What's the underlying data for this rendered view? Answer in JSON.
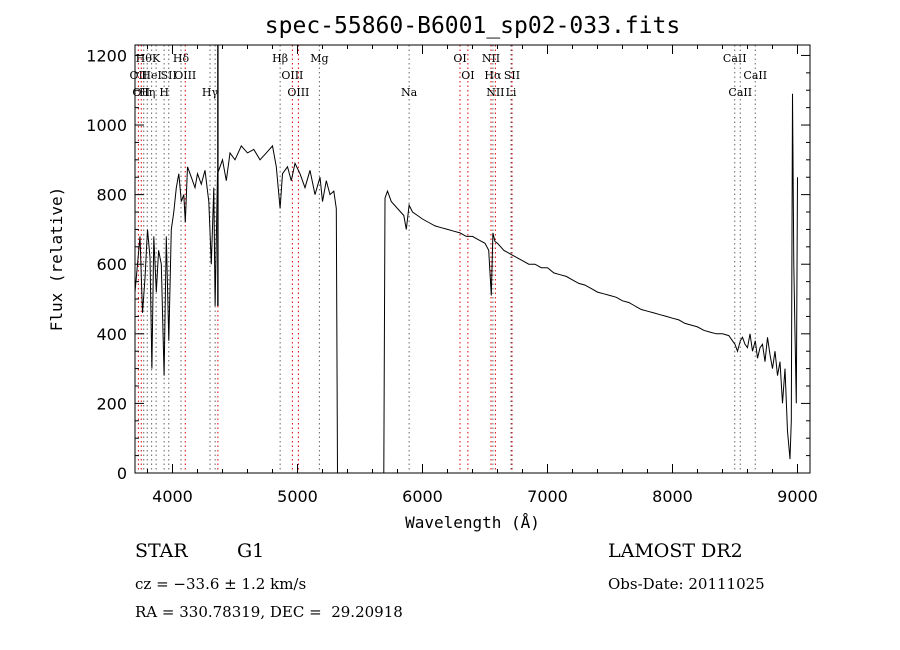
{
  "chart_data": {
    "type": "line",
    "title": "spec-55860-B6001_sp02-033.fits",
    "xlabel": "Wavelength (Å)",
    "ylabel": "Flux (relative)",
    "xlim": [
      3700,
      9100
    ],
    "ylim": [
      0,
      1230
    ],
    "x_ticks": [
      4000,
      5000,
      6000,
      7000,
      8000,
      9000
    ],
    "y_ticks": [
      0,
      200,
      400,
      600,
      800,
      1000,
      1200
    ],
    "grid": false,
    "line_colors": {
      "spectrum": "#000000",
      "emission": "#dd0000",
      "absorption": "#666666"
    },
    "series": [
      {
        "x": [
          3700,
          3720,
          3740,
          3760,
          3780,
          3800,
          3820,
          3835,
          3850,
          3870,
          3889,
          3910,
          3933,
          3950,
          3970,
          3990,
          4010,
          4030,
          4050,
          4070,
          4090,
          4102,
          4120,
          4150,
          4180,
          4200,
          4230,
          4260,
          4290,
          4310,
          4330,
          4341,
          4360,
          4380,
          4400,
          4430,
          4460,
          4500,
          4550,
          4600,
          4650,
          4700,
          4750,
          4800,
          4830,
          4861,
          4880,
          4920,
          4950,
          4980,
          5020,
          5060,
          5100,
          5140,
          5180,
          5200,
          5230,
          5260,
          5290,
          5310,
          5320,
          5360,
          5400,
          5500,
          5600,
          5670,
          5690,
          5700,
          5720,
          5750,
          5800,
          5850,
          5870,
          5893,
          5920,
          5960,
          6000,
          6050,
          6100,
          6150,
          6200,
          6250,
          6300,
          6350,
          6400,
          6450,
          6500,
          6530,
          6550,
          6563,
          6580,
          6600,
          6650,
          6700,
          6750,
          6800,
          6850,
          6900,
          6950,
          7000,
          7050,
          7100,
          7150,
          7200,
          7250,
          7300,
          7350,
          7400,
          7450,
          7500,
          7550,
          7600,
          7650,
          7700,
          7750,
          7800,
          7850,
          7900,
          7950,
          8000,
          8050,
          8100,
          8150,
          8200,
          8250,
          8300,
          8350,
          8400,
          8450,
          8480,
          8500,
          8520,
          8542,
          8560,
          8580,
          8600,
          8620,
          8640,
          8662,
          8680,
          8700,
          8720,
          8740,
          8760,
          8780,
          8800,
          8820,
          8840,
          8860,
          8880,
          8900,
          8920,
          8940,
          8950,
          8960,
          8970,
          8980,
          8990,
          9000
        ],
        "y": [
          520,
          600,
          680,
          460,
          560,
          700,
          620,
          300,
          680,
          520,
          640,
          600,
          280,
          680,
          380,
          700,
          750,
          820,
          860,
          780,
          800,
          720,
          880,
          850,
          820,
          860,
          830,
          870,
          780,
          600,
          820,
          480,
          860,
          880,
          900,
          840,
          920,
          900,
          940,
          920,
          930,
          900,
          920,
          940,
          880,
          760,
          860,
          880,
          840,
          890,
          860,
          820,
          870,
          800,
          850,
          780,
          840,
          800,
          810,
          760,
          0,
          0,
          0,
          0,
          0,
          0,
          0,
          790,
          810,
          780,
          760,
          740,
          700,
          770,
          750,
          740,
          730,
          720,
          710,
          705,
          700,
          695,
          690,
          680,
          680,
          670,
          660,
          640,
          510,
          690,
          665,
          660,
          640,
          630,
          620,
          610,
          600,
          600,
          590,
          590,
          575,
          570,
          565,
          555,
          545,
          540,
          530,
          520,
          515,
          510,
          505,
          495,
          490,
          480,
          470,
          465,
          460,
          455,
          450,
          445,
          440,
          430,
          425,
          420,
          410,
          405,
          400,
          400,
          395,
          380,
          370,
          350,
          380,
          390,
          370,
          360,
          400,
          350,
          380,
          330,
          360,
          370,
          320,
          390,
          340,
          300,
          350,
          280,
          320,
          200,
          300,
          120,
          40,
          150,
          1090,
          600,
          400,
          200,
          850
        ]
      }
    ],
    "line_markers": [
      {
        "x": 3727,
        "label": "OII",
        "kind": "emission",
        "row": 2
      },
      {
        "x": 3750,
        "label": "OII",
        "kind": "emission",
        "row": 3
      },
      {
        "x": 3770,
        "label": "Hθ",
        "kind": "absorption",
        "row": 1
      },
      {
        "x": 3798,
        "label": "Hη",
        "kind": "absorption",
        "row": 3
      },
      {
        "x": 3833,
        "label": "HeI",
        "kind": "absorption",
        "row": 2
      },
      {
        "x": 3869,
        "label": "K",
        "kind": "absorption",
        "row": 1
      },
      {
        "x": 3933,
        "label": "H",
        "kind": "absorption",
        "row": 3
      },
      {
        "x": 3970,
        "label": "SII",
        "kind": "absorption",
        "row": 2
      },
      {
        "x": 4068,
        "label": "Hδ",
        "kind": "absorption",
        "row": 1
      },
      {
        "x": 4102,
        "label": "OIII",
        "kind": "emission",
        "row": 2
      },
      {
        "x": 4300,
        "label": "Hγ",
        "kind": "absorption",
        "row": 3
      },
      {
        "x": 4341,
        "label": "",
        "kind": "absorption",
        "row": 0
      },
      {
        "x": 4363,
        "label": "",
        "kind": "emission",
        "row": 0
      },
      {
        "x": 4861,
        "label": "Hβ",
        "kind": "absorption",
        "row": 1
      },
      {
        "x": 4959,
        "label": "OIII",
        "kind": "emission",
        "row": 2
      },
      {
        "x": 5007,
        "label": "OIII",
        "kind": "emission",
        "row": 3
      },
      {
        "x": 5175,
        "label": "Mg",
        "kind": "absorption",
        "row": 1
      },
      {
        "x": 5893,
        "label": "Na",
        "kind": "absorption",
        "row": 3
      },
      {
        "x": 6300,
        "label": "OI",
        "kind": "emission",
        "row": 1
      },
      {
        "x": 6363,
        "label": "OI",
        "kind": "emission",
        "row": 2
      },
      {
        "x": 6548,
        "label": "NII",
        "kind": "emission",
        "row": 1
      },
      {
        "x": 6563,
        "label": "Hα",
        "kind": "absorption",
        "row": 2
      },
      {
        "x": 6583,
        "label": "NII",
        "kind": "emission",
        "row": 3
      },
      {
        "x": 6716,
        "label": "SII",
        "kind": "emission",
        "row": 2
      },
      {
        "x": 6708,
        "label": "Li",
        "kind": "absorption",
        "row": 3
      },
      {
        "x": 8498,
        "label": "CaII",
        "kind": "absorption",
        "row": 1
      },
      {
        "x": 8542,
        "label": "CaII",
        "kind": "absorption",
        "row": 3
      },
      {
        "x": 8662,
        "label": "CaII",
        "kind": "absorption",
        "row": 2
      }
    ]
  },
  "footer": {
    "object_class": "STAR",
    "subclass": "G1",
    "survey": "LAMOST DR2",
    "cz": "cz = −33.6 ± 1.2 km/s",
    "obs_date": "Obs-Date: 20111025",
    "radec": "RA = 330.78319, DEC =  29.20918"
  }
}
